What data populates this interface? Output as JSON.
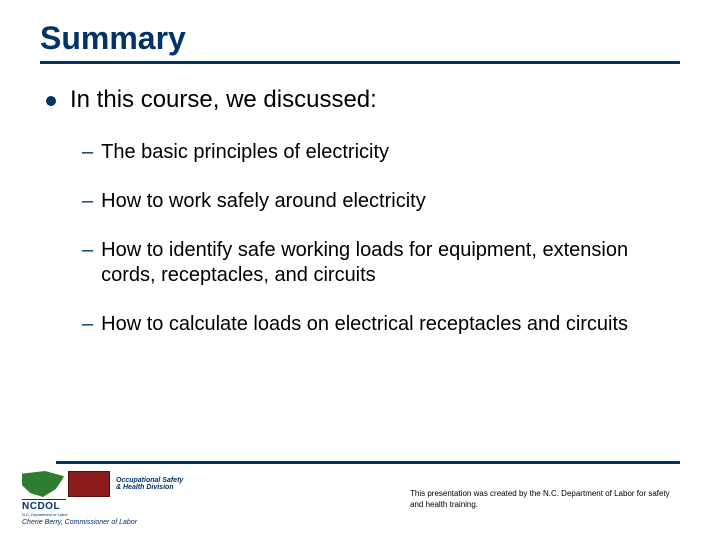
{
  "title": "Summary",
  "lead": "In this course, we discussed:",
  "subs": [
    "The basic principles of electricity",
    "How to work safely around electricity",
    "How to identify safe working loads for equipment, extension cords, receptacles, and circuits",
    "How to calculate loads on electrical receptacles and circuits"
  ],
  "logo": {
    "ncdol": "NCDOL",
    "dept": "N.C. Department of Labor",
    "osh_line1": "Occupational Safety",
    "osh_line2": "& Health Division",
    "commissioner": "Cherie Berry, Commissioner of Labor"
  },
  "credit": "This presentation was created by the N.C. Department of Labor for safety and health training.",
  "colors": {
    "accent": "#003366",
    "bg": "#ffffff"
  }
}
